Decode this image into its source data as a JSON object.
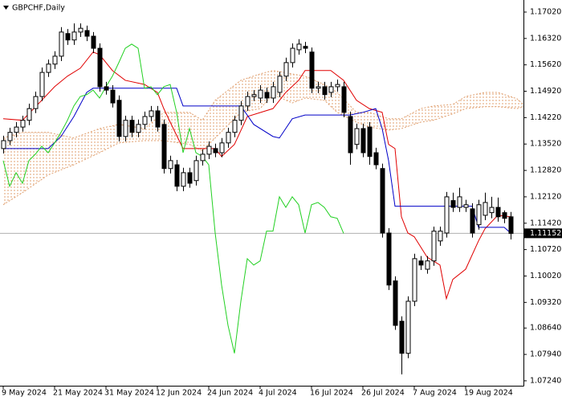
{
  "chart_data": {
    "type": "candlestick",
    "title": "GBPCHF,Daily",
    "xlim": [
      -0.5,
      81
    ],
    "ylim": [
      1.0711,
      1.1734
    ],
    "xticks": [
      {
        "value": 0,
        "label": "9 May 2024"
      },
      {
        "value": 8,
        "label": "21 May 2024"
      },
      {
        "value": 16,
        "label": "31 May 2024"
      },
      {
        "value": 24,
        "label": "12 Jun 2024"
      },
      {
        "value": 32,
        "label": "24 Jun 2024"
      },
      {
        "value": 40,
        "label": "4 Jul 2024"
      },
      {
        "value": 48,
        "label": "16 Jul 2024"
      },
      {
        "value": 56,
        "label": "26 Jul 2024"
      },
      {
        "value": 64,
        "label": "7 Aug 2024"
      },
      {
        "value": 72,
        "label": "19 Aug 2024"
      }
    ],
    "yticks": [
      {
        "value": 1.1702,
        "label": "1.17020"
      },
      {
        "value": 1.1632,
        "label": "1.16320"
      },
      {
        "value": 1.1562,
        "label": "1.15620"
      },
      {
        "value": 1.1492,
        "label": "1.14920"
      },
      {
        "value": 1.1422,
        "label": "1.14220"
      },
      {
        "value": 1.1352,
        "label": "1.13520"
      },
      {
        "value": 1.1282,
        "label": "1.12820"
      },
      {
        "value": 1.1212,
        "label": "1.12120"
      },
      {
        "value": 1.1142,
        "label": "1.11420"
      },
      {
        "value": 1.1072,
        "label": "1.10720"
      },
      {
        "value": 1.1002,
        "label": "1.10020"
      },
      {
        "value": 1.0932,
        "label": "1.09320"
      },
      {
        "value": 1.0864,
        "label": "1.08640"
      },
      {
        "value": 1.0794,
        "label": "1.07940"
      },
      {
        "value": 1.0724,
        "label": "1.07240"
      }
    ],
    "candles": {
      "up_color": "#ffffff",
      "down_color": "#000000",
      "outline_color": "#000000",
      "x": [
        0,
        1,
        2,
        3,
        4,
        5,
        6,
        7,
        8,
        9,
        10,
        11,
        12,
        13,
        14,
        15,
        16,
        17,
        18,
        19,
        20,
        21,
        22,
        23,
        24,
        25,
        26,
        27,
        28,
        29,
        30,
        31,
        32,
        33,
        34,
        35,
        36,
        37,
        38,
        39,
        40,
        41,
        42,
        43,
        44,
        45,
        46,
        47,
        48,
        49,
        50,
        51,
        52,
        53,
        54,
        55,
        56,
        57,
        58,
        59,
        60,
        61,
        62,
        63,
        64,
        65,
        66,
        67,
        68,
        69,
        70,
        71,
        72,
        73,
        74,
        75,
        76,
        77,
        78,
        79
      ],
      "open": [
        1.134,
        1.1361,
        1.1383,
        1.1397,
        1.1415,
        1.1446,
        1.1478,
        1.1542,
        1.1564,
        1.1585,
        1.1645,
        1.1628,
        1.1649,
        1.1653,
        1.1638,
        1.1606,
        1.1504,
        1.1495,
        1.1468,
        1.1372,
        1.1415,
        1.1383,
        1.1404,
        1.1425,
        1.144,
        1.1404,
        1.1287,
        1.1297,
        1.124,
        1.1276,
        1.1255,
        1.1308,
        1.1325,
        1.134,
        1.1329,
        1.1355,
        1.1383,
        1.1415,
        1.1453,
        1.1478,
        1.1474,
        1.1489,
        1.1474,
        1.1489,
        1.1532,
        1.1568,
        1.1602,
        1.1611,
        1.1596,
        1.15,
        1.1504,
        1.1489,
        1.1504,
        1.1504,
        1.1425,
        1.1351,
        1.1393,
        1.1397,
        1.1329,
        1.1287,
        1.1116,
        1.0989,
        1.0882,
        1.0797,
        1.0935,
        1.1042,
        1.102,
        1.1042,
        1.1095,
        1.1116,
        1.1202,
        1.1184,
        1.1184,
        1.118,
        1.1138,
        1.1163,
        1.117,
        1.1184,
        1.117,
        1.1159
      ],
      "high": [
        1.1374,
        1.1395,
        1.141,
        1.1427,
        1.1459,
        1.1491,
        1.1555,
        1.1576,
        1.1598,
        1.1662,
        1.1657,
        1.1672,
        1.1672,
        1.1666,
        1.1649,
        1.1619,
        1.1517,
        1.1508,
        1.1481,
        1.1427,
        1.1427,
        1.1417,
        1.1438,
        1.1453,
        1.1453,
        1.1417,
        1.1321,
        1.131,
        1.1289,
        1.1289,
        1.1321,
        1.1338,
        1.1359,
        1.1353,
        1.1368,
        1.1395,
        1.1427,
        1.1466,
        1.1491,
        1.1495,
        1.1508,
        1.1502,
        1.1517,
        1.1544,
        1.1581,
        1.1619,
        1.163,
        1.1623,
        1.1608,
        1.1517,
        1.1517,
        1.1517,
        1.1523,
        1.1517,
        1.1438,
        1.1406,
        1.1406,
        1.141,
        1.1342,
        1.13,
        1.1129,
        1.1001,
        1.0895,
        1.0948,
        1.1061,
        1.1055,
        1.1055,
        1.1133,
        1.1133,
        1.1225,
        1.1223,
        1.1236,
        1.1204,
        1.1195,
        1.1204,
        1.1223,
        1.1212,
        1.121,
        1.1176,
        1.1172
      ],
      "low": [
        1.1327,
        1.1349,
        1.137,
        1.1385,
        1.1402,
        1.1434,
        1.1466,
        1.153,
        1.1551,
        1.1572,
        1.1615,
        1.1615,
        1.1636,
        1.1625,
        1.1593,
        1.1491,
        1.1483,
        1.1449,
        1.1359,
        1.1359,
        1.137,
        1.137,
        1.1391,
        1.1412,
        1.1385,
        1.1274,
        1.1274,
        1.1227,
        1.1227,
        1.1236,
        1.1242,
        1.1295,
        1.1312,
        1.1317,
        1.1317,
        1.1342,
        1.137,
        1.1402,
        1.144,
        1.1466,
        1.1461,
        1.1461,
        1.1461,
        1.1476,
        1.1519,
        1.1555,
        1.1589,
        1.1593,
        1.1487,
        1.1487,
        1.147,
        1.1476,
        1.1491,
        1.1423,
        1.1297,
        1.1338,
        1.1317,
        1.1297,
        1.1285,
        1.1104,
        1.0965,
        1.0859,
        1.0741,
        1.0784,
        1.0922,
        1.1018,
        1.1008,
        1.1029,
        1.1082,
        1.1104,
        1.1172,
        1.1172,
        1.1172,
        1.1104,
        1.1125,
        1.115,
        1.1155,
        1.1146,
        1.1142,
        1.1099
      ],
      "close": [
        1.1361,
        1.1383,
        1.1397,
        1.1415,
        1.1446,
        1.1478,
        1.1542,
        1.1564,
        1.1585,
        1.1649,
        1.1628,
        1.1649,
        1.1659,
        1.1638,
        1.1606,
        1.1504,
        1.1495,
        1.1461,
        1.1372,
        1.1415,
        1.1383,
        1.1404,
        1.1425,
        1.144,
        1.1397,
        1.1287,
        1.1308,
        1.124,
        1.1276,
        1.1248,
        1.1308,
        1.1325,
        1.1346,
        1.1329,
        1.1355,
        1.1383,
        1.1415,
        1.1453,
        1.1478,
        1.1483,
        1.1495,
        1.1474,
        1.1504,
        1.1532,
        1.1568,
        1.1606,
        1.1617,
        1.1606,
        1.15,
        1.1504,
        1.1483,
        1.1504,
        1.151,
        1.1436,
        1.1329,
        1.1393,
        1.1329,
        1.1319,
        1.1297,
        1.1116,
        1.0978,
        1.0871,
        1.0797,
        1.0935,
        1.1048,
        1.1031,
        1.1042,
        1.1121,
        1.1121,
        1.1212,
        1.1184,
        1.1212,
        1.1191,
        1.1116,
        1.1191,
        1.1197,
        1.1184,
        1.1159,
        1.1155,
        1.1115
      ]
    },
    "series": [
      {
        "type": "line",
        "color": "#e00000",
        "x": [
          0,
          3,
          6,
          8,
          10,
          12,
          14,
          15,
          17,
          19,
          22,
          24,
          25,
          26,
          28,
          33,
          34,
          36,
          38,
          42,
          44,
          46,
          47,
          51,
          53,
          55,
          57,
          59,
          60,
          61,
          62,
          63,
          64,
          66,
          68,
          69,
          70,
          72,
          74,
          75,
          77,
          79
        ],
        "values": [
          1.1419,
          1.1415,
          1.1468,
          1.1504,
          1.1532,
          1.1553,
          1.1596,
          1.1589,
          1.1547,
          1.1521,
          1.151,
          1.1489,
          1.1446,
          1.141,
          1.134,
          1.134,
          1.1319,
          1.1351,
          1.1425,
          1.1446,
          1.1489,
          1.1521,
          1.1547,
          1.1547,
          1.1521,
          1.1468,
          1.1446,
          1.1436,
          1.1351,
          1.134,
          1.1159,
          1.1116,
          1.1106,
          1.1052,
          1.1031,
          1.0942,
          1.0993,
          1.102,
          1.1095,
          1.1127,
          1.1163,
          1.1159
        ]
      },
      {
        "type": "line",
        "color": "#0000c8",
        "x": [
          0,
          7,
          9,
          11,
          13,
          14,
          27,
          28,
          37,
          39,
          42,
          43,
          45,
          47,
          54,
          56,
          58,
          59,
          60,
          61,
          73,
          74,
          78,
          79
        ],
        "values": [
          1.134,
          1.134,
          1.1372,
          1.1425,
          1.1489,
          1.15,
          1.15,
          1.1453,
          1.1453,
          1.1404,
          1.1372,
          1.1368,
          1.1419,
          1.1429,
          1.1429,
          1.1436,
          1.1446,
          1.1393,
          1.1308,
          1.1187,
          1.1187,
          1.1131,
          1.1131,
          1.1116
        ]
      },
      {
        "type": "line",
        "color": "#22d022",
        "x": [
          0,
          1,
          2,
          3,
          4,
          5,
          6,
          7,
          8,
          9,
          10,
          11,
          12,
          13,
          14,
          15,
          16,
          17,
          18,
          19,
          20,
          21,
          22,
          23,
          24,
          25,
          26,
          27,
          28,
          29,
          30,
          31,
          32,
          33,
          34,
          35,
          36,
          37,
          38,
          39,
          40,
          41,
          42,
          43,
          44,
          45,
          46,
          47,
          48,
          49,
          50,
          51,
          52,
          53
        ],
        "values": [
          1.1308,
          1.124,
          1.1276,
          1.1248,
          1.1308,
          1.1325,
          1.1346,
          1.1329,
          1.1355,
          1.1383,
          1.1415,
          1.1453,
          1.1478,
          1.1483,
          1.1495,
          1.1474,
          1.1504,
          1.1532,
          1.1568,
          1.1606,
          1.1617,
          1.1606,
          1.15,
          1.1504,
          1.1483,
          1.1504,
          1.151,
          1.1436,
          1.1329,
          1.1393,
          1.1329,
          1.1319,
          1.1297,
          1.1116,
          1.0978,
          1.0871,
          1.0797,
          1.0935,
          1.1048,
          1.1031,
          1.1042,
          1.1121,
          1.1121,
          1.1212,
          1.1184,
          1.1212,
          1.1191,
          1.1116,
          1.1191,
          1.1197,
          1.1184,
          1.1159,
          1.1155,
          1.1115
        ]
      }
    ],
    "cloud": {
      "color": "#e0a070",
      "x": [
        0,
        3,
        7,
        11,
        15,
        18,
        22,
        25,
        29,
        31,
        33,
        37,
        40,
        42,
        45,
        47,
        50,
        52,
        55,
        57,
        60,
        62,
        65,
        67,
        70,
        72,
        75,
        77,
        80,
        81
      ],
      "upper": [
        1.1368,
        1.1383,
        1.1383,
        1.1368,
        1.1393,
        1.1404,
        1.1393,
        1.1436,
        1.1436,
        1.1415,
        1.1468,
        1.1521,
        1.1538,
        1.1547,
        1.1538,
        1.1532,
        1.151,
        1.1489,
        1.1436,
        1.1436,
        1.1419,
        1.1419,
        1.1446,
        1.1453,
        1.1457,
        1.1478,
        1.1489,
        1.1489,
        1.1472,
        1.1457
      ],
      "lower": [
        1.1191,
        1.1223,
        1.127,
        1.1297,
        1.1329,
        1.1355,
        1.1361,
        1.1361,
        1.1351,
        1.1334,
        1.1368,
        1.1436,
        1.1446,
        1.1483,
        1.1461,
        1.1474,
        1.1468,
        1.1436,
        1.141,
        1.1397,
        1.1389,
        1.1393,
        1.141,
        1.1415,
        1.1432,
        1.1446,
        1.1451,
        1.1451,
        1.1446,
        1.1451
      ]
    },
    "last_price": 1.11152
  }
}
